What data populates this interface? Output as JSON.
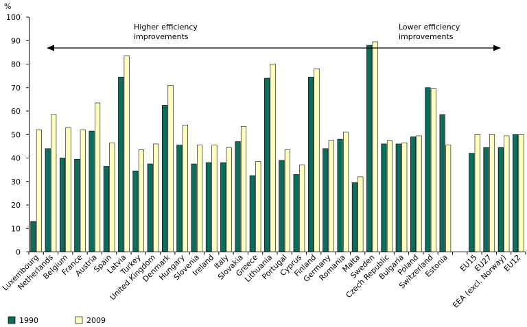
{
  "chart_data": {
    "type": "bar",
    "ylabel": "%",
    "ylim": [
      0,
      100
    ],
    "yticks": [
      0,
      10,
      20,
      30,
      40,
      50,
      60,
      70,
      80,
      90,
      100
    ],
    "categories": [
      "Luxembourg",
      "Netherlands",
      "Belgium",
      "France",
      "Austria",
      "Spain",
      "Latvia",
      "Turkey",
      "United Kingdom",
      "Denmark",
      "Hungary",
      "Slovenia",
      "Ireland",
      "Italy",
      "Slovakia",
      "Greece",
      "Lithuania",
      "Portugal",
      "Cyprus",
      "Finland",
      "Germany",
      "Romania",
      "Malta",
      "Sweden",
      "Czech Republic",
      "Bulgaria",
      "Poland",
      "Switzerland",
      "Estonia",
      "",
      "EU15",
      "EU27",
      "EEA (excl. Norway)",
      "EU12"
    ],
    "series": [
      {
        "name": "1990",
        "color": "#0f6b5a",
        "values": [
          13,
          44,
          40,
          39.5,
          51.5,
          36.5,
          74.5,
          34.5,
          37.5,
          62.5,
          45.5,
          37.5,
          38,
          38,
          47,
          32.5,
          74,
          39,
          33,
          74.5,
          44,
          48,
          29.5,
          88,
          46,
          46,
          49,
          70,
          58.5,
          null,
          42,
          44.5,
          44.5,
          50
        ]
      },
      {
        "name": "2009",
        "color": "#ffffc0",
        "values": [
          52,
          58.5,
          53,
          52,
          63.5,
          46.5,
          83.5,
          43.5,
          46,
          71,
          54,
          45.5,
          45.5,
          44.5,
          53.5,
          38.5,
          80,
          43.5,
          37,
          78,
          47.5,
          51,
          32,
          89.5,
          47.5,
          46.5,
          49.5,
          69.5,
          45.5,
          null,
          50,
          50,
          49.5,
          50
        ]
      }
    ],
    "annotations": {
      "left": [
        "Higher efficiency",
        "improvements"
      ],
      "right": [
        "Lower efficiency",
        "improvements"
      ]
    },
    "legend_position": "bottom-left",
    "grid": false
  }
}
